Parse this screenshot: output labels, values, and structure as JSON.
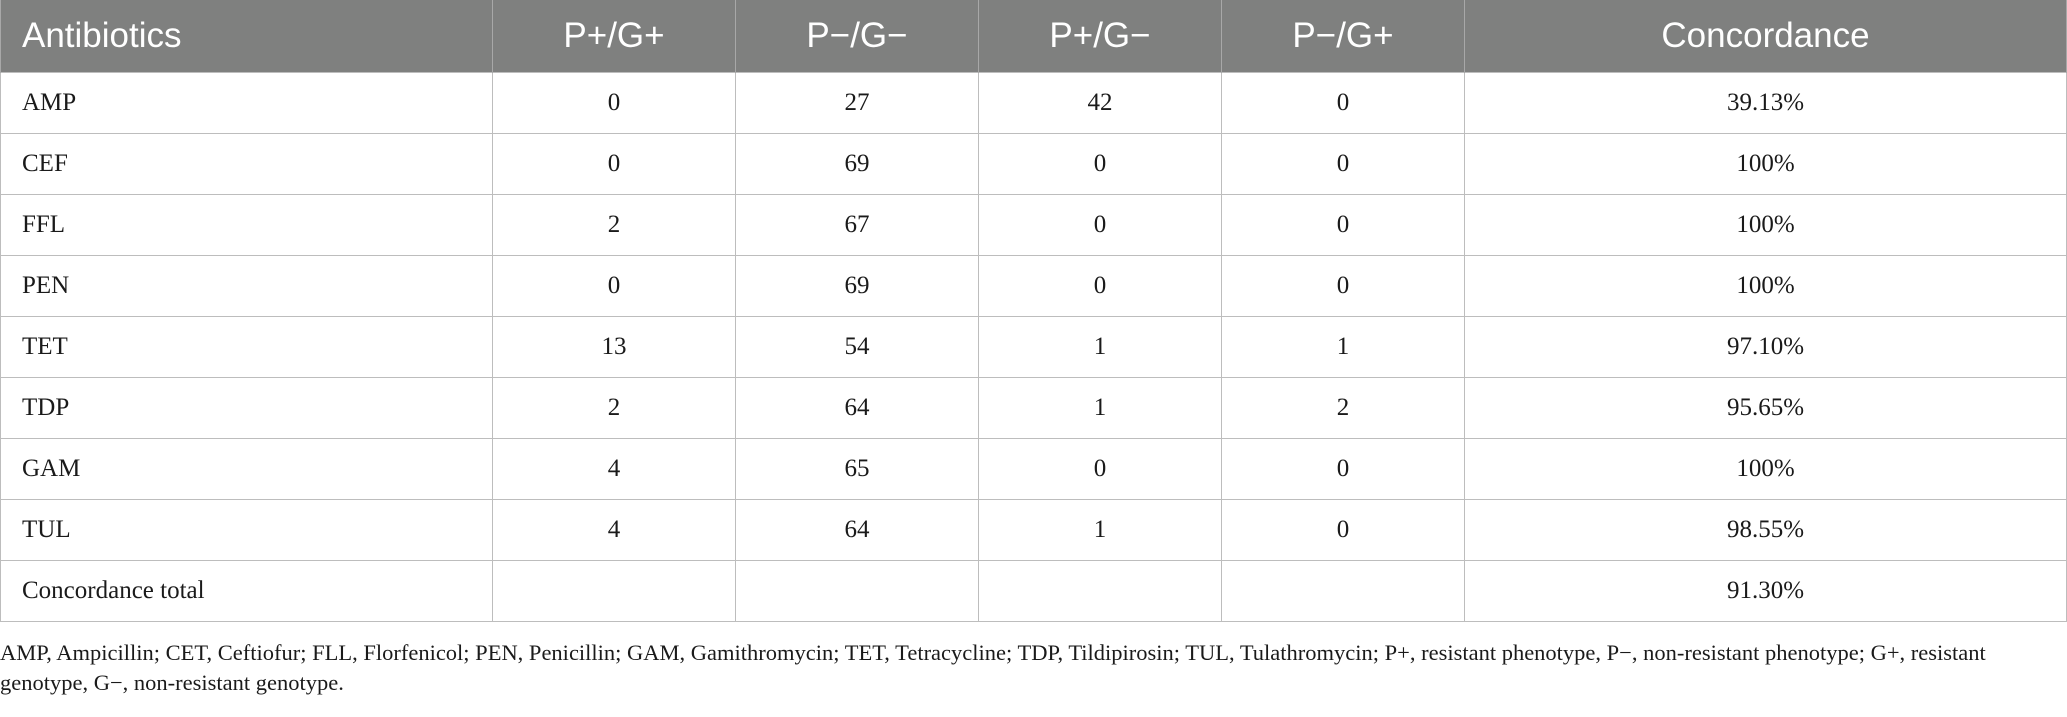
{
  "table": {
    "headers": [
      "Antibiotics",
      "P+/G+",
      "P−/G−",
      "P+/G−",
      "P−/G+",
      "Concordance"
    ],
    "rows": [
      [
        "AMP",
        "0",
        "27",
        "42",
        "0",
        "39.13%"
      ],
      [
        "CEF",
        "0",
        "69",
        "0",
        "0",
        "100%"
      ],
      [
        "FFL",
        "2",
        "67",
        "0",
        "0",
        "100%"
      ],
      [
        "PEN",
        "0",
        "69",
        "0",
        "0",
        "100%"
      ],
      [
        "TET",
        "13",
        "54",
        "1",
        "1",
        "97.10%"
      ],
      [
        "TDP",
        "2",
        "64",
        "1",
        "2",
        "95.65%"
      ],
      [
        "GAM",
        "4",
        "65",
        "0",
        "0",
        "100%"
      ],
      [
        "TUL",
        "4",
        "64",
        "1",
        "0",
        "98.55%"
      ],
      [
        "Concordance total",
        "",
        "",
        "",
        "",
        "91.30%"
      ]
    ]
  },
  "footnote": "AMP, Ampicillin; CET, Ceftiofur; FLL, Florfenicol; PEN, Penicillin; GAM, Gamithromycin; TET, Tetracycline; TDP, Tildipirosin; TUL, Tulathromycin; P+, resistant phenotype, P−, non-resistant phenotype; G+, resistant genotype, G−, non-resistant genotype."
}
